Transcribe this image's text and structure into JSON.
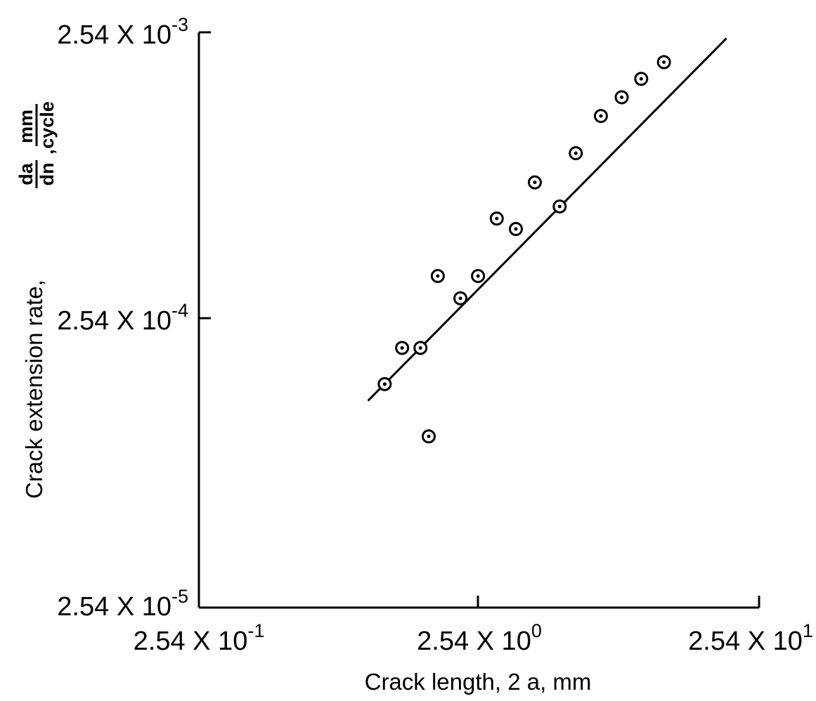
{
  "chart_data": {
    "type": "scatter",
    "title": "",
    "xlabel": "Crack length, 2 a, mm",
    "ylabel": {
      "prefix": "Crack extension rate,",
      "fraction_numerator": "da",
      "fraction_denominator": "dn",
      "unit_numerator": "mm",
      "unit_denominator": "cycle"
    },
    "x_scale": "log",
    "y_scale": "log",
    "xlim": [
      0.254,
      25.4
    ],
    "ylim": [
      2.54e-05,
      0.00254
    ],
    "x_ticks": [
      {
        "value": 0.254,
        "base": "2.54 X 10",
        "exp": "-1"
      },
      {
        "value": 2.54,
        "base": "2.54 X 10",
        "exp": "0"
      },
      {
        "value": 25.4,
        "base": "2.54 X 10",
        "exp": "1"
      }
    ],
    "y_ticks": [
      {
        "value": 0.00254,
        "base": "2.54 X 10",
        "exp": "-3"
      },
      {
        "value": 0.000254,
        "base": "2.54 X 10",
        "exp": "-4"
      },
      {
        "value": 2.54e-05,
        "base": "2.54 X 10",
        "exp": "-5"
      }
    ],
    "grid": false,
    "points": [
      {
        "x": 1.17,
        "y": 0.000152
      },
      {
        "x": 1.35,
        "y": 0.000203
      },
      {
        "x": 1.57,
        "y": 0.000203
      },
      {
        "x": 1.68,
        "y": 0.0001
      },
      {
        "x": 1.81,
        "y": 0.000361
      },
      {
        "x": 2.18,
        "y": 0.000302
      },
      {
        "x": 2.52,
        "y": 0.000361
      },
      {
        "x": 2.94,
        "y": 0.000572
      },
      {
        "x": 3.44,
        "y": 0.000526
      },
      {
        "x": 4.02,
        "y": 0.000764
      },
      {
        "x": 4.93,
        "y": 0.00063
      },
      {
        "x": 5.63,
        "y": 0.000965
      },
      {
        "x": 6.92,
        "y": 0.0013
      },
      {
        "x": 8.21,
        "y": 0.00151
      },
      {
        "x": 9.64,
        "y": 0.00175
      },
      {
        "x": 11.62,
        "y": 0.002
      }
    ],
    "fit_line": {
      "x": [
        1.02,
        19.42
      ],
      "y": [
        0.000133,
        0.00242
      ]
    }
  }
}
